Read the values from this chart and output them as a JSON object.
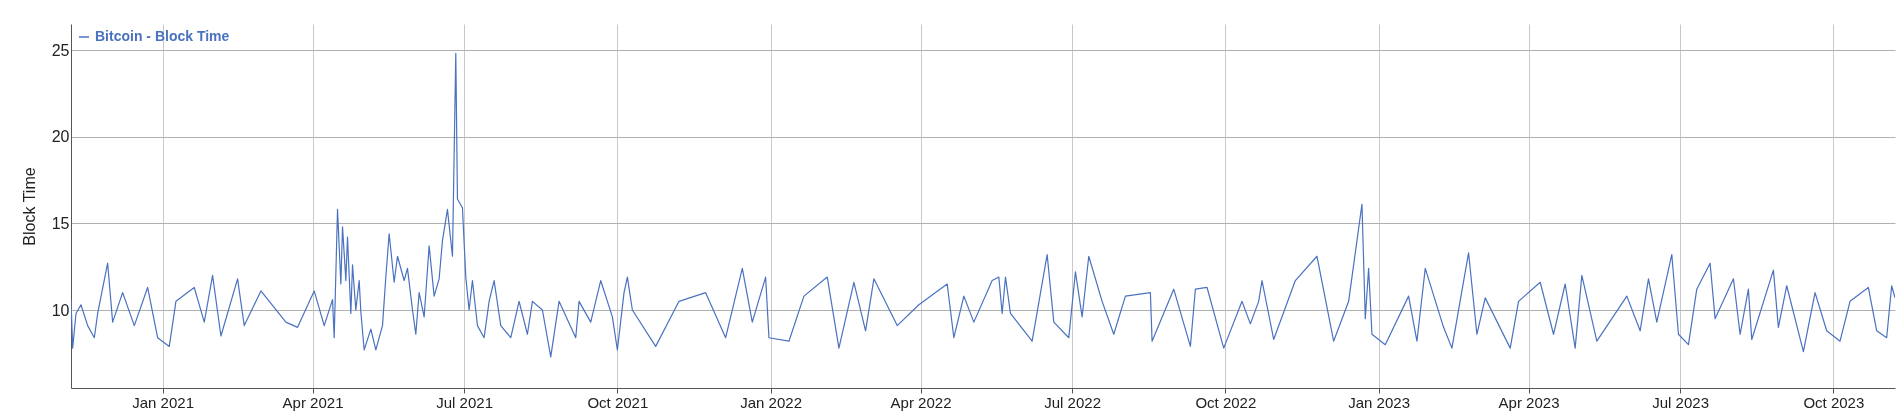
{
  "chart_data": {
    "type": "line",
    "ylabel": "Block Time",
    "xlim": [
      "2020-11-07",
      "2023-11-07"
    ],
    "ylim": [
      5.5,
      26.5
    ],
    "yticks": [
      10,
      15,
      20,
      25
    ],
    "xticks": [
      {
        "value": "2021-01-01",
        "label": "Jan 2021"
      },
      {
        "value": "2021-04-01",
        "label": "Apr 2021"
      },
      {
        "value": "2021-07-01",
        "label": "Jul 2021"
      },
      {
        "value": "2021-10-01",
        "label": "Oct 2021"
      },
      {
        "value": "2022-01-01",
        "label": "Jan 2022"
      },
      {
        "value": "2022-04-01",
        "label": "Apr 2022"
      },
      {
        "value": "2022-07-01",
        "label": "Jul 2022"
      },
      {
        "value": "2022-10-01",
        "label": "Oct 2022"
      },
      {
        "value": "2023-01-01",
        "label": "Jan 2023"
      },
      {
        "value": "2023-04-01",
        "label": "Apr 2023"
      },
      {
        "value": "2023-07-01",
        "label": "Jul 2023"
      },
      {
        "value": "2023-10-01",
        "label": "Oct 2023"
      }
    ],
    "grid": true,
    "legend": "top left",
    "marker": "none",
    "line_style": "solid",
    "series": [
      {
        "name": "Bitcoin - Block Time",
        "color": "#4a72c0",
        "x": [
          "2020-11-07",
          "2020-11-08",
          "2020-11-10",
          "2020-11-13",
          "2020-11-17",
          "2020-11-21",
          "2020-11-23",
          "2020-11-29",
          "2020-12-02",
          "2020-12-08",
          "2020-12-15",
          "2020-12-23",
          "2020-12-29",
          "2021-01-05",
          "2021-01-09",
          "2021-01-20",
          "2021-01-26",
          "2021-01-31",
          "2021-02-05",
          "2021-02-15",
          "2021-02-19",
          "2021-03-01",
          "2021-03-16",
          "2021-03-23",
          "2021-04-02",
          "2021-04-08",
          "2021-04-13",
          "2021-04-14",
          "2021-04-16",
          "2021-04-18",
          "2021-04-19",
          "2021-04-21",
          "2021-04-22",
          "2021-04-24",
          "2021-04-25",
          "2021-04-27",
          "2021-04-29",
          "2021-04-30",
          "2021-05-02",
          "2021-05-06",
          "2021-05-09",
          "2021-05-13",
          "2021-05-15",
          "2021-05-17",
          "2021-05-20",
          "2021-05-22",
          "2021-05-26",
          "2021-05-28",
          "2021-05-31",
          "2021-06-02",
          "2021-06-04",
          "2021-06-07",
          "2021-06-10",
          "2021-06-13",
          "2021-06-16",
          "2021-06-18",
          "2021-06-21",
          "2021-06-24",
          "2021-06-26",
          "2021-06-27",
          "2021-06-30",
          "2021-07-02",
          "2021-07-04",
          "2021-07-06",
          "2021-07-09",
          "2021-07-13",
          "2021-07-16",
          "2021-07-19",
          "2021-07-23",
          "2021-07-29",
          "2021-08-03",
          "2021-08-08",
          "2021-08-11",
          "2021-08-17",
          "2021-08-22",
          "2021-08-27",
          "2021-09-06",
          "2021-09-08",
          "2021-09-15",
          "2021-09-21",
          "2021-09-28",
          "2021-10-01",
          "2021-10-05",
          "2021-10-07",
          "2021-10-10",
          "2021-10-24",
          "2021-11-07",
          "2021-11-23",
          "2021-12-05",
          "2021-12-15",
          "2021-12-21",
          "2021-12-29",
          "2021-12-31",
          "2022-01-12",
          "2022-01-21",
          "2022-02-04",
          "2022-02-11",
          "2022-02-20",
          "2022-02-27",
          "2022-03-04",
          "2022-03-18",
          "2022-03-31",
          "2022-04-17",
          "2022-04-21",
          "2022-04-27",
          "2022-05-03",
          "2022-05-14",
          "2022-05-18",
          "2022-05-20",
          "2022-05-22",
          "2022-05-25",
          "2022-06-07",
          "2022-06-16",
          "2022-06-20",
          "2022-06-29",
          "2022-07-03",
          "2022-07-07",
          "2022-07-11",
          "2022-07-19",
          "2022-07-26",
          "2022-08-02",
          "2022-08-17",
          "2022-08-18",
          "2022-08-31",
          "2022-09-10",
          "2022-09-13",
          "2022-09-20",
          "2022-09-30",
          "2022-10-11",
          "2022-10-16",
          "2022-10-21",
          "2022-10-23",
          "2022-10-30",
          "2022-11-12",
          "2022-11-25",
          "2022-12-05",
          "2022-12-14",
          "2022-12-22",
          "2022-12-24",
          "2022-12-26",
          "2022-12-28",
          "2023-01-05",
          "2023-01-19",
          "2023-01-24",
          "2023-01-29",
          "2023-02-09",
          "2023-02-14",
          "2023-02-24",
          "2023-03-01",
          "2023-03-06",
          "2023-03-21",
          "2023-03-26",
          "2023-04-08",
          "2023-04-16",
          "2023-04-23",
          "2023-04-29",
          "2023-05-03",
          "2023-05-12",
          "2023-05-30",
          "2023-06-07",
          "2023-06-12",
          "2023-06-17",
          "2023-06-26",
          "2023-06-30",
          "2023-07-06",
          "2023-07-11",
          "2023-07-19",
          "2023-07-22",
          "2023-08-02",
          "2023-08-06",
          "2023-08-11",
          "2023-08-13",
          "2023-08-26",
          "2023-08-29",
          "2023-09-03",
          "2023-09-13",
          "2023-09-20",
          "2023-09-27",
          "2023-10-05",
          "2023-10-11",
          "2023-10-22",
          "2023-10-27",
          "2023-11-02",
          "2023-11-05",
          "2023-11-07"
        ],
        "values": [
          10.6,
          7.8,
          9.8,
          10.3,
          9.1,
          8.4,
          9.8,
          12.7,
          9.3,
          11.0,
          9.1,
          11.3,
          8.4,
          7.9,
          10.5,
          11.3,
          9.3,
          12.0,
          8.5,
          11.8,
          9.1,
          11.1,
          9.3,
          9.0,
          11.1,
          9.1,
          10.6,
          8.4,
          15.8,
          11.5,
          14.8,
          11.7,
          14.2,
          9.8,
          12.6,
          10.0,
          11.7,
          9.9,
          7.7,
          8.9,
          7.7,
          9.1,
          11.9,
          14.4,
          11.6,
          13.1,
          11.7,
          12.4,
          10.0,
          8.6,
          11.0,
          9.6,
          13.7,
          10.8,
          11.8,
          14.0,
          15.8,
          13.1,
          24.8,
          16.4,
          15.9,
          11.9,
          10.0,
          11.7,
          9.1,
          8.4,
          10.5,
          11.7,
          9.1,
          8.4,
          10.5,
          8.6,
          10.5,
          10.0,
          7.3,
          10.5,
          8.4,
          10.5,
          9.3,
          11.7,
          9.6,
          7.7,
          11.0,
          11.9,
          10.0,
          7.9,
          10.5,
          11.0,
          8.4,
          12.4,
          9.3,
          11.9,
          8.4,
          8.2,
          10.8,
          11.9,
          7.8,
          11.6,
          8.8,
          11.8,
          9.1,
          10.3,
          11.5,
          8.4,
          10.8,
          9.3,
          11.7,
          11.9,
          9.8,
          11.9,
          9.8,
          8.2,
          13.2,
          9.3,
          8.4,
          12.2,
          9.6,
          13.1,
          10.5,
          8.6,
          10.8,
          11.0,
          8.2,
          11.2,
          7.9,
          11.2,
          11.3,
          7.8,
          10.5,
          9.2,
          10.5,
          11.7,
          8.3,
          11.7,
          13.1,
          8.2,
          10.5,
          16.1,
          9.5,
          12.4,
          8.6,
          8.0,
          10.8,
          8.2,
          12.4,
          9.0,
          7.8,
          13.3,
          8.6,
          10.7,
          7.8,
          10.5,
          11.6,
          8.6,
          11.5,
          7.8,
          12.0,
          8.2,
          10.8,
          8.8,
          11.8,
          9.3,
          13.2,
          8.6,
          8.0,
          11.2,
          12.7,
          9.5,
          11.8,
          8.6,
          11.2,
          8.3,
          12.3,
          9.0,
          11.4,
          7.6,
          11.0,
          8.8,
          8.2,
          10.5,
          11.3,
          8.8,
          8.4,
          11.4,
          10.7
        ]
      }
    ]
  }
}
